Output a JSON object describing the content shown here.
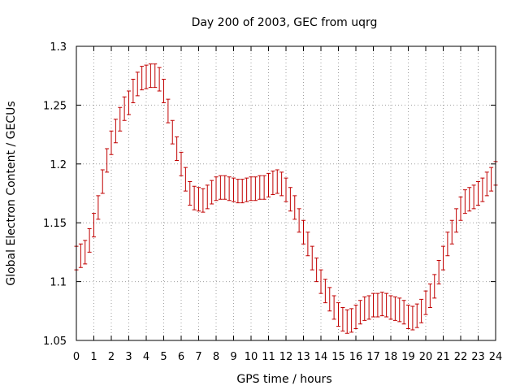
{
  "chart_data": {
    "type": "line",
    "title": "Day 200 of 2003, GEC from uqrg",
    "xlabel": "GPS time / hours",
    "ylabel": "Global Electron Content / GECUs",
    "xlim": [
      0,
      24
    ],
    "ylim": [
      1.05,
      1.3
    ],
    "xticks": [
      "0",
      "1",
      "2",
      "3",
      "4",
      "5",
      "6",
      "7",
      "8",
      "9",
      "10",
      "11",
      "12",
      "13",
      "14",
      "15",
      "16",
      "17",
      "18",
      "19",
      "20",
      "21",
      "22",
      "23",
      "24"
    ],
    "yticks": [
      "1.05",
      "1.1",
      "1.15",
      "1.2",
      "1.25",
      "1.3"
    ],
    "grid": true,
    "series": [
      {
        "name": "GEC",
        "color": "#c00000",
        "x": [
          0.0,
          0.25,
          0.5,
          0.75,
          1.0,
          1.25,
          1.5,
          1.75,
          2.0,
          2.25,
          2.5,
          2.75,
          3.0,
          3.25,
          3.5,
          3.75,
          4.0,
          4.25,
          4.5,
          4.75,
          5.0,
          5.25,
          5.5,
          5.75,
          6.0,
          6.25,
          6.5,
          6.75,
          7.0,
          7.25,
          7.5,
          7.75,
          8.0,
          8.25,
          8.5,
          8.75,
          9.0,
          9.25,
          9.5,
          9.75,
          10.0,
          10.25,
          10.5,
          10.75,
          11.0,
          11.25,
          11.5,
          11.75,
          12.0,
          12.25,
          12.5,
          12.75,
          13.0,
          13.25,
          13.5,
          13.75,
          14.0,
          14.25,
          14.5,
          14.75,
          15.0,
          15.25,
          15.5,
          15.75,
          16.0,
          16.25,
          16.5,
          16.75,
          17.0,
          17.25,
          17.5,
          17.75,
          18.0,
          18.25,
          18.5,
          18.75,
          19.0,
          19.25,
          19.5,
          19.75,
          20.0,
          20.25,
          20.5,
          20.75,
          21.0,
          21.25,
          21.5,
          21.75,
          22.0,
          22.25,
          22.5,
          22.75,
          23.0,
          23.25,
          23.5,
          23.75,
          24.0
        ],
        "y": [
          1.12,
          1.122,
          1.125,
          1.135,
          1.148,
          1.163,
          1.185,
          1.203,
          1.218,
          1.228,
          1.238,
          1.247,
          1.252,
          1.262,
          1.268,
          1.273,
          1.274,
          1.275,
          1.275,
          1.272,
          1.262,
          1.245,
          1.227,
          1.213,
          1.2,
          1.187,
          1.175,
          1.171,
          1.17,
          1.169,
          1.172,
          1.176,
          1.179,
          1.18,
          1.18,
          1.179,
          1.178,
          1.177,
          1.177,
          1.178,
          1.179,
          1.179,
          1.18,
          1.18,
          1.182,
          1.184,
          1.185,
          1.183,
          1.178,
          1.17,
          1.163,
          1.152,
          1.142,
          1.132,
          1.12,
          1.11,
          1.1,
          1.092,
          1.085,
          1.078,
          1.072,
          1.068,
          1.066,
          1.067,
          1.07,
          1.074,
          1.077,
          1.078,
          1.08,
          1.08,
          1.081,
          1.08,
          1.078,
          1.077,
          1.076,
          1.074,
          1.07,
          1.069,
          1.071,
          1.075,
          1.082,
          1.088,
          1.096,
          1.108,
          1.12,
          1.132,
          1.142,
          1.152,
          1.162,
          1.168,
          1.17,
          1.172,
          1.175,
          1.178,
          1.183,
          1.187,
          1.192
        ],
        "error": 0.01
      }
    ]
  }
}
